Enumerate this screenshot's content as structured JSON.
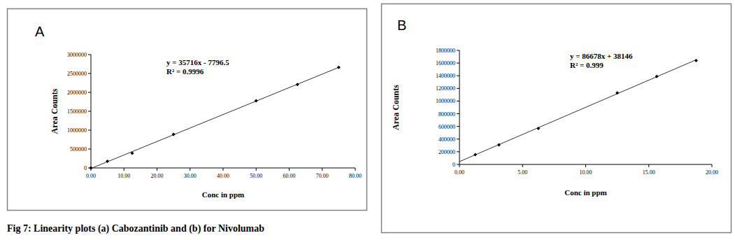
{
  "chart_data": [
    {
      "type": "scatter",
      "title": "A",
      "x_label": "Conc in ppm",
      "y_label": "Area Counts",
      "annotations": [
        "y = 35716x - 7796.5",
        "R² = 0.9996"
      ],
      "x": [
        0,
        5,
        12.5,
        25,
        50,
        62.5,
        75
      ],
      "values": [
        0,
        175000,
        390000,
        890000,
        1780000,
        2210000,
        2660000
      ],
      "color": "#000000",
      "marker": "diamond",
      "xlim": [
        0,
        80
      ],
      "xticks": [
        {
          "value": 0,
          "label": "0.00"
        },
        {
          "value": 10,
          "label": "10.00"
        },
        {
          "value": 20,
          "label": "20.00"
        },
        {
          "value": 30,
          "label": "30.00"
        },
        {
          "value": 40,
          "label": "40.00"
        },
        {
          "value": 50,
          "label": "50.00"
        },
        {
          "value": 60,
          "label": "60.00"
        },
        {
          "value": 70,
          "label": "70.00"
        },
        {
          "value": 80,
          "label": "80.00"
        }
      ],
      "ylim": [
        0,
        3000000
      ],
      "yticks": [
        0,
        500000,
        1000000,
        1500000,
        2000000,
        2500000,
        3000000
      ],
      "grid": false
    },
    {
      "type": "scatter",
      "title": "B",
      "x_label": "Conc in ppm",
      "y_label": "Area Counts",
      "annotations": [
        "y = 86678x + 38146",
        "R² = 0.999"
      ],
      "x": [
        1.25,
        3.125,
        6.25,
        12.5,
        15.625,
        18.75
      ],
      "values": [
        155000,
        310000,
        570000,
        1130000,
        1390000,
        1640000
      ],
      "color": "#000000",
      "marker": "diamond",
      "xlim": [
        0,
        20
      ],
      "xticks": [
        {
          "value": 0,
          "label": "0.00"
        },
        {
          "value": 5,
          "label": "5.00"
        },
        {
          "value": 10,
          "label": "10.00"
        },
        {
          "value": 15,
          "label": "15.00"
        },
        {
          "value": 20,
          "label": "20.00"
        }
      ],
      "ylim": [
        0,
        1800000
      ],
      "yticks": [
        0,
        200000,
        400000,
        600000,
        800000,
        1000000,
        1200000,
        1400000,
        1600000,
        1800000
      ],
      "grid": false
    }
  ],
  "caption": "Fig 7: Linearity plots (a) Cabozantinib and (b) for Nivolumab"
}
